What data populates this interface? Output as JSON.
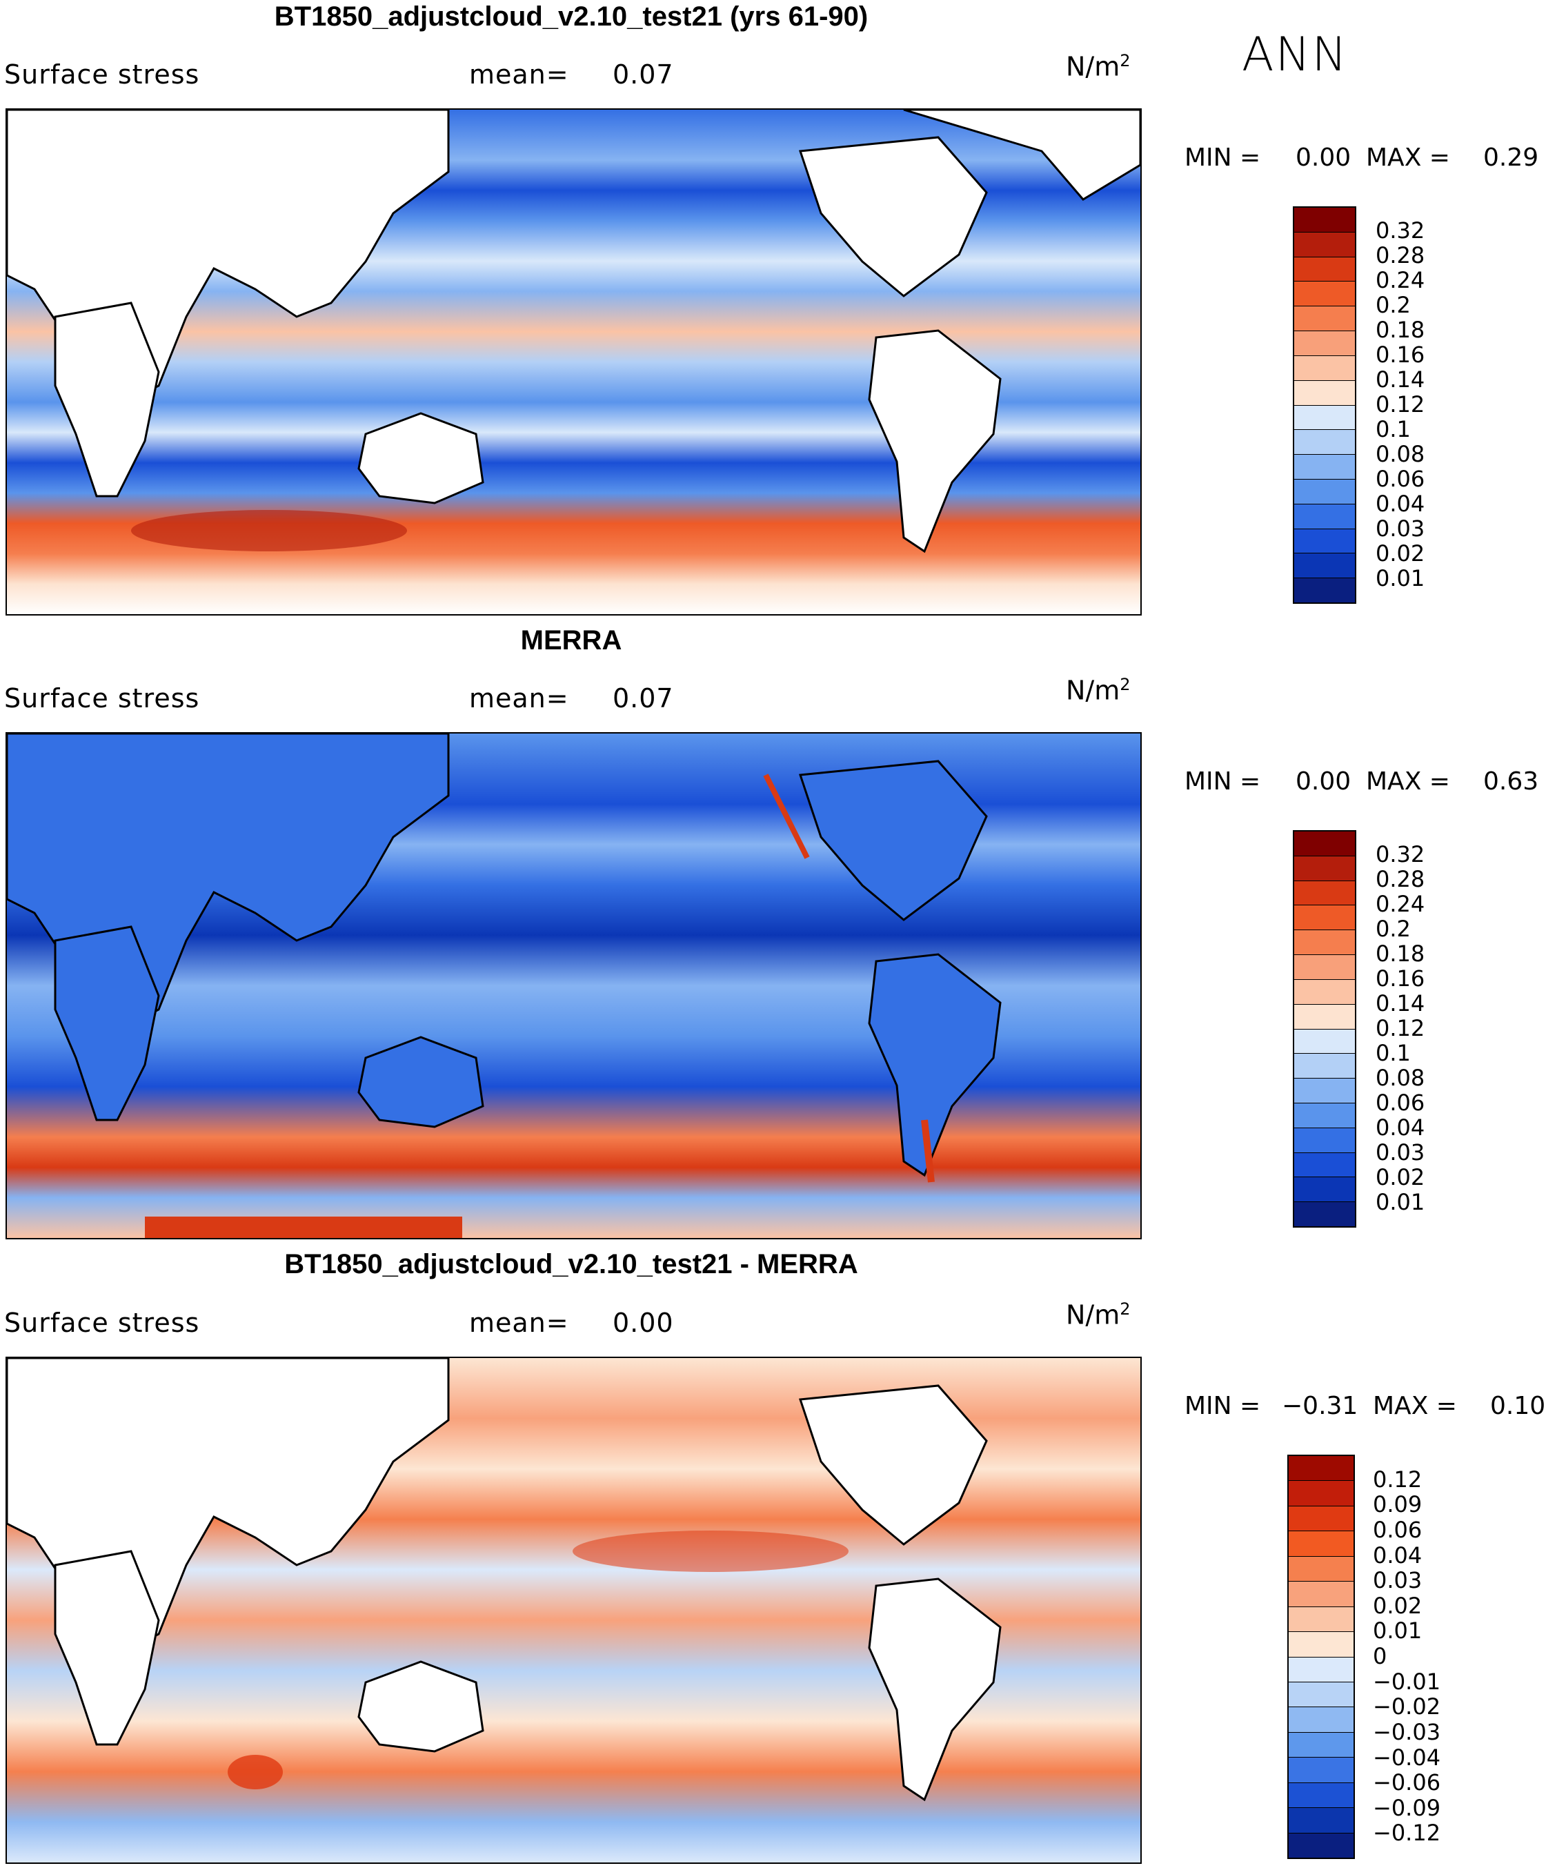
{
  "figure": {
    "season": "ANN",
    "panels": [
      {
        "title": "BT1850_adjustcloud_v2.10_test21 (yrs 61-90)",
        "variable": "Surface stress",
        "mean_label": "mean=",
        "mean_value": "0.07",
        "units_base": "N/m",
        "units_exp": "2",
        "min_label": "MIN =",
        "min_value": "0.00",
        "max_label": "MAX =",
        "max_value": "0.29",
        "colorbar": {
          "ticks": [
            "0.32",
            "0.28",
            "0.24",
            "0.2",
            "0.18",
            "0.16",
            "0.14",
            "0.12",
            "0.1",
            "0.08",
            "0.06",
            "0.04",
            "0.03",
            "0.02",
            "0.01"
          ],
          "colors": [
            "#7f0000",
            "#b41e0c",
            "#d93a14",
            "#ee5a27",
            "#f57e4e",
            "#f8a07a",
            "#fbc3a5",
            "#fde3d0",
            "#d9e8fa",
            "#b3d0f6",
            "#86b3f2",
            "#5a94ec",
            "#3470e4",
            "#1a4fd6",
            "#0b36b5",
            "#0a1f80"
          ]
        }
      },
      {
        "title": "MERRA",
        "variable": "Surface stress",
        "mean_label": "mean=",
        "mean_value": "0.07",
        "units_base": "N/m",
        "units_exp": "2",
        "min_label": "MIN =",
        "min_value": "0.00",
        "max_label": "MAX =",
        "max_value": "0.63",
        "colorbar": {
          "ticks": [
            "0.32",
            "0.28",
            "0.24",
            "0.2",
            "0.18",
            "0.16",
            "0.14",
            "0.12",
            "0.1",
            "0.08",
            "0.06",
            "0.04",
            "0.03",
            "0.02",
            "0.01"
          ],
          "colors": [
            "#7f0000",
            "#b41e0c",
            "#d93a14",
            "#ee5a27",
            "#f57e4e",
            "#f8a07a",
            "#fbc3a5",
            "#fde3d0",
            "#d9e8fa",
            "#b3d0f6",
            "#86b3f2",
            "#5a94ec",
            "#3470e4",
            "#1a4fd6",
            "#0b36b5",
            "#0a1f80"
          ]
        }
      },
      {
        "title": "BT1850_adjustcloud_v2.10_test21 - MERRA",
        "variable": "Surface stress",
        "mean_label": "mean=",
        "mean_value": "0.00",
        "units_base": "N/m",
        "units_exp": "2",
        "min_label": "MIN =",
        "min_value": "−0.31",
        "max_label": "MAX =",
        "max_value": "0.10",
        "colorbar": {
          "ticks": [
            "0.12",
            "0.09",
            "0.06",
            "0.04",
            "0.03",
            "0.02",
            "0.01",
            "0",
            "−0.01",
            "−0.02",
            "−0.03",
            "−0.04",
            "−0.06",
            "−0.09",
            "−0.12"
          ],
          "colors": [
            "#9e0a00",
            "#c21e0a",
            "#e03a12",
            "#f25a22",
            "#f5804e",
            "#f8a27c",
            "#fac5a7",
            "#fde6d3",
            "#dbe9fb",
            "#b8d3f6",
            "#8fb9f2",
            "#5e98ec",
            "#3a74e4",
            "#1c52d4",
            "#0c36ad",
            "#0a1f80"
          ]
        }
      }
    ]
  }
}
